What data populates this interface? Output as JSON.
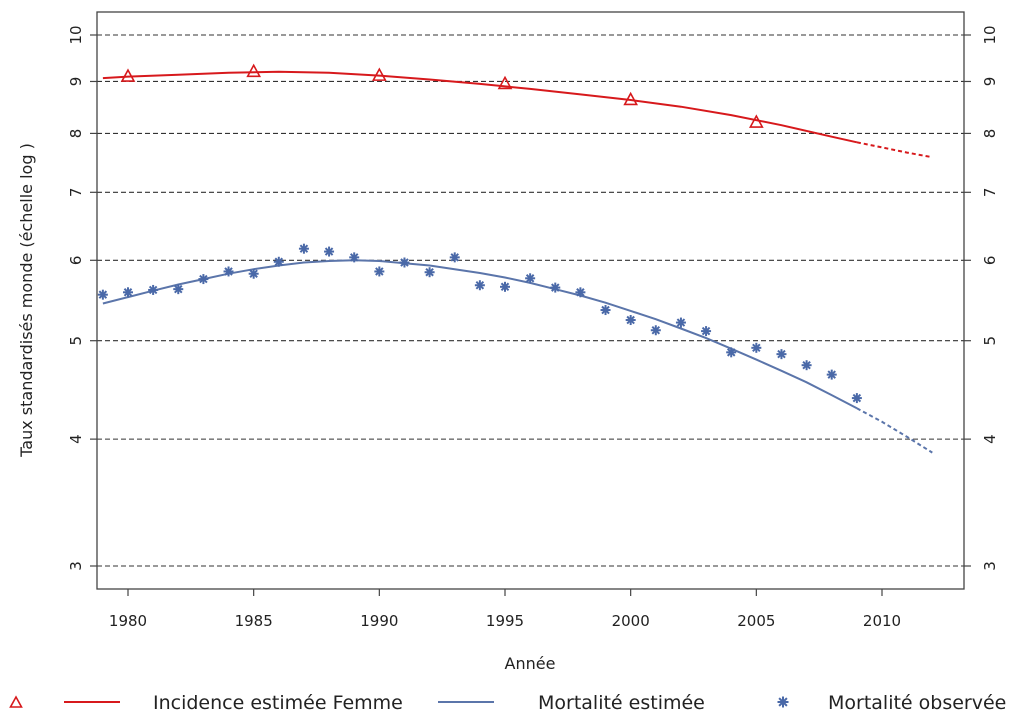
{
  "chart_data": {
    "type": "line",
    "title": "",
    "xlabel": "Année",
    "ylabel": "Taux standardisés monde (échelle log )",
    "xlim": [
      1979,
      2013.5
    ],
    "ylim": [
      2.8,
      10.6
    ],
    "y_scale": "log",
    "grid": "horizontal dashed",
    "x_ticks": [
      "1980",
      "1985",
      "1990",
      "1995",
      "2000",
      "2005",
      "2010"
    ],
    "y_ticks": [
      "3",
      "4",
      "5",
      "6",
      "7",
      "8",
      "9",
      "10"
    ],
    "legend_position": "bottom",
    "series": [
      {
        "name": "Incidence estimée Femme",
        "kind": "line",
        "color": "#d7191c",
        "points": [
          [
            1979,
            9.07
          ],
          [
            1980,
            9.1
          ],
          [
            1982,
            9.14
          ],
          [
            1984,
            9.18
          ],
          [
            1986,
            9.2
          ],
          [
            1988,
            9.18
          ],
          [
            1990,
            9.12
          ],
          [
            1992,
            9.04
          ],
          [
            1994,
            8.95
          ],
          [
            1996,
            8.85
          ],
          [
            1998,
            8.74
          ],
          [
            2000,
            8.63
          ],
          [
            2002,
            8.5
          ],
          [
            2004,
            8.34
          ],
          [
            2006,
            8.15
          ],
          [
            2008,
            7.94
          ],
          [
            2009,
            7.84
          ]
        ],
        "projection_points": [
          [
            2009,
            7.84
          ],
          [
            2010,
            7.75
          ],
          [
            2011,
            7.66
          ],
          [
            2012,
            7.58
          ]
        ]
      },
      {
        "name": "Incidence estimée Femme",
        "kind": "markers",
        "marker": "triangle",
        "color": "#d7191c",
        "points": [
          [
            1980,
            9.1
          ],
          [
            1985,
            9.2
          ],
          [
            1990,
            9.12
          ],
          [
            1995,
            8.95
          ],
          [
            2000,
            8.63
          ],
          [
            2005,
            8.2
          ]
        ]
      },
      {
        "name": "Mortalité estimée",
        "kind": "line",
        "color": "#5b75aa",
        "points": [
          [
            1979,
            5.44
          ],
          [
            1980,
            5.52
          ],
          [
            1981,
            5.6
          ],
          [
            1982,
            5.68
          ],
          [
            1983,
            5.75
          ],
          [
            1984,
            5.82
          ],
          [
            1985,
            5.88
          ],
          [
            1986,
            5.93
          ],
          [
            1987,
            5.97
          ],
          [
            1988,
            5.99
          ],
          [
            1989,
            6.0
          ],
          [
            1990,
            5.99
          ],
          [
            1991,
            5.96
          ],
          [
            1992,
            5.93
          ],
          [
            1993,
            5.88
          ],
          [
            1994,
            5.83
          ],
          [
            1995,
            5.77
          ],
          [
            1996,
            5.7
          ],
          [
            1997,
            5.62
          ],
          [
            1998,
            5.54
          ],
          [
            1999,
            5.45
          ],
          [
            2000,
            5.35
          ],
          [
            2001,
            5.25
          ],
          [
            2002,
            5.14
          ],
          [
            2003,
            5.03
          ],
          [
            2004,
            4.91
          ],
          [
            2005,
            4.79
          ],
          [
            2006,
            4.67
          ],
          [
            2007,
            4.55
          ],
          [
            2008,
            4.42
          ],
          [
            2009,
            4.29
          ]
        ],
        "projection_points": [
          [
            2009,
            4.29
          ],
          [
            2010,
            4.16
          ],
          [
            2011,
            4.02
          ],
          [
            2012,
            3.88
          ]
        ]
      },
      {
        "name": "Mortalité observée",
        "kind": "markers",
        "marker": "asterisk",
        "color": "#4a69a8",
        "points": [
          [
            1979,
            5.55
          ],
          [
            1980,
            5.58
          ],
          [
            1981,
            5.61
          ],
          [
            1982,
            5.62
          ],
          [
            1983,
            5.75
          ],
          [
            1984,
            5.85
          ],
          [
            1985,
            5.82
          ],
          [
            1986,
            5.98
          ],
          [
            1987,
            6.16
          ],
          [
            1988,
            6.12
          ],
          [
            1989,
            6.04
          ],
          [
            1990,
            5.85
          ],
          [
            1991,
            5.97
          ],
          [
            1992,
            5.84
          ],
          [
            1993,
            6.04
          ],
          [
            1994,
            5.67
          ],
          [
            1995,
            5.65
          ],
          [
            1996,
            5.76
          ],
          [
            1997,
            5.64
          ],
          [
            1998,
            5.58
          ],
          [
            1999,
            5.36
          ],
          [
            2000,
            5.24
          ],
          [
            2001,
            5.12
          ],
          [
            2002,
            5.21
          ],
          [
            2003,
            5.11
          ],
          [
            2004,
            4.87
          ],
          [
            2005,
            4.92
          ],
          [
            2006,
            4.85
          ],
          [
            2007,
            4.73
          ],
          [
            2008,
            4.63
          ],
          [
            2009,
            4.39
          ]
        ]
      }
    ]
  },
  "legend": {
    "items": [
      {
        "label": "",
        "color": "#d7191c",
        "symbol": "triangle"
      },
      {
        "label": "Incidence estimée Femme",
        "color": "#d7191c",
        "symbol": "line"
      },
      {
        "label": "Mortalité estimée",
        "color": "#5b75aa",
        "symbol": "line"
      },
      {
        "label": "Mortalité observée",
        "color": "#4a69a8",
        "symbol": "asterisk"
      }
    ]
  }
}
